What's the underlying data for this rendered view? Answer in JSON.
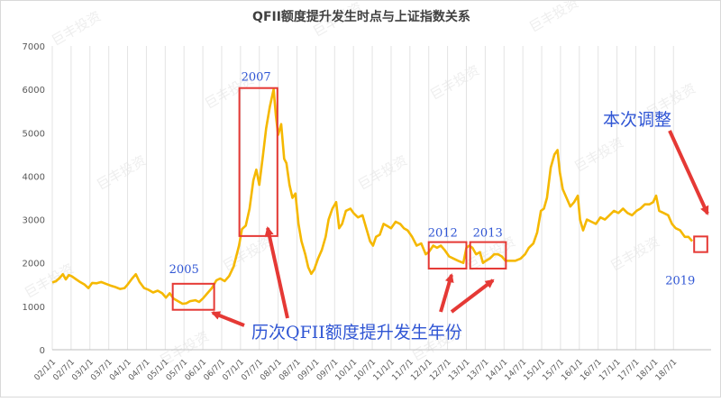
{
  "chart_data": {
    "type": "line",
    "title": "QFII额度提升发生时点与上证指数关系",
    "xlabel": "",
    "ylabel": "",
    "ylim": [
      0,
      7000
    ],
    "yticks": [
      0,
      1000,
      2000,
      3000,
      4000,
      5000,
      6000,
      7000
    ],
    "grid": "vertical",
    "legend": "none",
    "x_tick_labels": [
      "02/1/1",
      "02/7/1",
      "03/1/1",
      "03/7/1",
      "04/1/1",
      "04/7/1",
      "05/1/1",
      "05/7/1",
      "06/1/1",
      "06/7/1",
      "07/1/1",
      "07/7/1",
      "08/1/1",
      "08/7/1",
      "09/1/1",
      "09/7/1",
      "10/1/1",
      "10/7/1",
      "11/1/1",
      "11/7/1",
      "12/1/1",
      "12/7/1",
      "13/1/1",
      "13/7/1",
      "14/1/1",
      "14/7/1",
      "15/1/1",
      "15/7/1",
      "16/1/1",
      "16/7/1",
      "17/1/1",
      "17/7/1",
      "18/1/1",
      "18/7/1"
    ],
    "series": [
      {
        "color": "#f5b800",
        "points": [
          [
            2002.0,
            1550
          ],
          [
            2002.1,
            1580
          ],
          [
            2002.2,
            1660
          ],
          [
            2002.28,
            1740
          ],
          [
            2002.36,
            1620
          ],
          [
            2002.44,
            1720
          ],
          [
            2002.52,
            1690
          ],
          [
            2002.62,
            1630
          ],
          [
            2002.74,
            1560
          ],
          [
            2002.86,
            1500
          ],
          [
            2002.96,
            1420
          ],
          [
            2003.06,
            1540
          ],
          [
            2003.18,
            1530
          ],
          [
            2003.3,
            1560
          ],
          [
            2003.42,
            1520
          ],
          [
            2003.54,
            1480
          ],
          [
            2003.66,
            1450
          ],
          [
            2003.8,
            1400
          ],
          [
            2003.92,
            1420
          ],
          [
            2004.0,
            1500
          ],
          [
            2004.12,
            1640
          ],
          [
            2004.22,
            1740
          ],
          [
            2004.32,
            1560
          ],
          [
            2004.44,
            1420
          ],
          [
            2004.56,
            1380
          ],
          [
            2004.68,
            1320
          ],
          [
            2004.8,
            1360
          ],
          [
            2004.92,
            1300
          ],
          [
            2005.02,
            1200
          ],
          [
            2005.12,
            1300
          ],
          [
            2005.22,
            1180
          ],
          [
            2005.34,
            1120
          ],
          [
            2005.46,
            1060
          ],
          [
            2005.56,
            1070
          ],
          [
            2005.66,
            1120
          ],
          [
            2005.8,
            1140
          ],
          [
            2005.9,
            1100
          ],
          [
            2006.0,
            1180
          ],
          [
            2006.12,
            1300
          ],
          [
            2006.24,
            1420
          ],
          [
            2006.36,
            1600
          ],
          [
            2006.46,
            1640
          ],
          [
            2006.58,
            1580
          ],
          [
            2006.7,
            1700
          ],
          [
            2006.82,
            1920
          ],
          [
            2006.96,
            2400
          ],
          [
            2007.04,
            2780
          ],
          [
            2007.14,
            2860
          ],
          [
            2007.24,
            3250
          ],
          [
            2007.34,
            3900
          ],
          [
            2007.42,
            4150
          ],
          [
            2007.5,
            3800
          ],
          [
            2007.6,
            4500
          ],
          [
            2007.68,
            5100
          ],
          [
            2007.78,
            5600
          ],
          [
            2007.88,
            6000
          ],
          [
            2007.94,
            5400
          ],
          [
            2008.0,
            4950
          ],
          [
            2008.08,
            5200
          ],
          [
            2008.16,
            4400
          ],
          [
            2008.22,
            4300
          ],
          [
            2008.3,
            3800
          ],
          [
            2008.38,
            3500
          ],
          [
            2008.46,
            3600
          ],
          [
            2008.54,
            2900
          ],
          [
            2008.62,
            2500
          ],
          [
            2008.72,
            2200
          ],
          [
            2008.8,
            1900
          ],
          [
            2008.88,
            1750
          ],
          [
            2008.96,
            1850
          ],
          [
            2009.06,
            2100
          ],
          [
            2009.16,
            2300
          ],
          [
            2009.26,
            2600
          ],
          [
            2009.34,
            3000
          ],
          [
            2009.44,
            3250
          ],
          [
            2009.54,
            3400
          ],
          [
            2009.62,
            2800
          ],
          [
            2009.7,
            2900
          ],
          [
            2009.8,
            3200
          ],
          [
            2009.92,
            3250
          ],
          [
            2010.0,
            3150
          ],
          [
            2010.12,
            3050
          ],
          [
            2010.24,
            3100
          ],
          [
            2010.34,
            2800
          ],
          [
            2010.44,
            2500
          ],
          [
            2010.52,
            2400
          ],
          [
            2010.6,
            2600
          ],
          [
            2010.7,
            2650
          ],
          [
            2010.8,
            2900
          ],
          [
            2010.9,
            2850
          ],
          [
            2011.0,
            2800
          ],
          [
            2011.12,
            2950
          ],
          [
            2011.24,
            2900
          ],
          [
            2011.34,
            2800
          ],
          [
            2011.44,
            2750
          ],
          [
            2011.56,
            2600
          ],
          [
            2011.68,
            2400
          ],
          [
            2011.8,
            2450
          ],
          [
            2011.92,
            2200
          ],
          [
            2012.0,
            2250
          ],
          [
            2012.12,
            2400
          ],
          [
            2012.22,
            2350
          ],
          [
            2012.32,
            2400
          ],
          [
            2012.42,
            2300
          ],
          [
            2012.54,
            2150
          ],
          [
            2012.66,
            2100
          ],
          [
            2012.78,
            2050
          ],
          [
            2012.92,
            2000
          ],
          [
            2013.0,
            2350
          ],
          [
            2013.08,
            2400
          ],
          [
            2013.16,
            2350
          ],
          [
            2013.26,
            2200
          ],
          [
            2013.36,
            2250
          ],
          [
            2013.44,
            2000
          ],
          [
            2013.52,
            2050
          ],
          [
            2013.62,
            2100
          ],
          [
            2013.74,
            2200
          ],
          [
            2013.84,
            2200
          ],
          [
            2013.94,
            2150
          ],
          [
            2014.04,
            2050
          ],
          [
            2014.16,
            2050
          ],
          [
            2014.3,
            2050
          ],
          [
            2014.44,
            2100
          ],
          [
            2014.56,
            2200
          ],
          [
            2014.66,
            2350
          ],
          [
            2014.78,
            2450
          ],
          [
            2014.88,
            2700
          ],
          [
            2014.98,
            3200
          ],
          [
            2015.06,
            3250
          ],
          [
            2015.14,
            3500
          ],
          [
            2015.24,
            4200
          ],
          [
            2015.34,
            4500
          ],
          [
            2015.42,
            4600
          ],
          [
            2015.48,
            4100
          ],
          [
            2015.56,
            3700
          ],
          [
            2015.66,
            3500
          ],
          [
            2015.76,
            3300
          ],
          [
            2015.86,
            3400
          ],
          [
            2015.96,
            3550
          ],
          [
            2016.02,
            3000
          ],
          [
            2016.1,
            2750
          ],
          [
            2016.2,
            3000
          ],
          [
            2016.32,
            2950
          ],
          [
            2016.44,
            2900
          ],
          [
            2016.56,
            3050
          ],
          [
            2016.68,
            3000
          ],
          [
            2016.8,
            3100
          ],
          [
            2016.92,
            3200
          ],
          [
            2017.04,
            3150
          ],
          [
            2017.16,
            3250
          ],
          [
            2017.28,
            3150
          ],
          [
            2017.4,
            3100
          ],
          [
            2017.52,
            3200
          ],
          [
            2017.62,
            3250
          ],
          [
            2017.74,
            3350
          ],
          [
            2017.86,
            3350
          ],
          [
            2017.96,
            3400
          ],
          [
            2018.04,
            3550
          ],
          [
            2018.12,
            3200
          ],
          [
            2018.24,
            3150
          ],
          [
            2018.36,
            3100
          ],
          [
            2018.46,
            2900
          ],
          [
            2018.56,
            2800
          ],
          [
            2018.68,
            2750
          ],
          [
            2018.8,
            2600
          ],
          [
            2018.9,
            2600
          ],
          [
            2019.0,
            2500
          ]
        ]
      }
    ],
    "annotations": {
      "highlight_years": [
        {
          "label": "2005",
          "x_range": [
            2005.2,
            2006.3
          ],
          "y_range": [
            920,
            1520
          ]
        },
        {
          "label": "2007",
          "x_range": [
            2006.97,
            2007.98
          ],
          "y_range": [
            2620,
            6030
          ]
        },
        {
          "label": "2012",
          "x_range": [
            2012.0,
            2013.0
          ],
          "y_range": [
            1870,
            2480
          ]
        },
        {
          "label": "2013",
          "x_range": [
            2013.1,
            2014.05
          ],
          "y_range": [
            1870,
            2480
          ]
        },
        {
          "label": "2019",
          "x_range": [
            2019.05,
            2019.4
          ],
          "y_range": [
            2250,
            2610
          ]
        }
      ],
      "caption": "历次QFII额度提升发生年份",
      "current_label": "本次调整"
    },
    "watermark": "巨丰投资"
  }
}
